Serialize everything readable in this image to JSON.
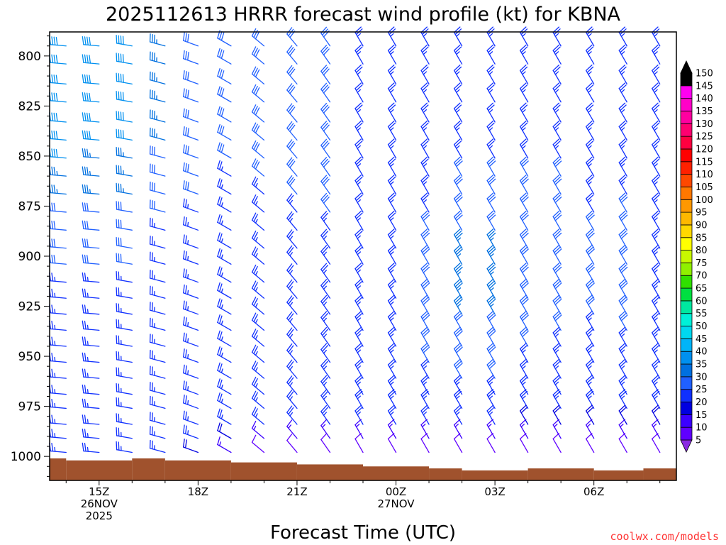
{
  "chart_data": {
    "type": "wind_barb_profile",
    "title": "2025112613 HRRR forecast wind profile (kt) for KBNA",
    "xlabel": "Forecast Time (UTC)",
    "ylabel": "",
    "credit": "coolwx.com/models",
    "y_ticks": [
      800,
      825,
      850,
      875,
      900,
      925,
      950,
      975,
      1000
    ],
    "ylim": [
      1012,
      788
    ],
    "xlim": [
      -1.5,
      17.5
    ],
    "x_ticks": [
      {
        "hour": 0,
        "lines": [
          "15Z",
          "26NOV",
          "2025"
        ]
      },
      {
        "hour": 3,
        "lines": [
          "18Z"
        ]
      },
      {
        "hour": 6,
        "lines": [
          "21Z"
        ]
      },
      {
        "hour": 9,
        "lines": [
          "00Z",
          "27NOV"
        ]
      },
      {
        "hour": 12,
        "lines": [
          "03Z"
        ]
      },
      {
        "hour": 15,
        "lines": [
          "06Z"
        ]
      }
    ],
    "pressure_levels": [
      795,
      804,
      814,
      823,
      833,
      842,
      851,
      860,
      869,
      878,
      887,
      896,
      904,
      913,
      921,
      929,
      937,
      945,
      953,
      961,
      969,
      976,
      984,
      991,
      998
    ],
    "surface_pressure": [
      {
        "x0": -1.5,
        "x1": -1.0,
        "p": 1001
      },
      {
        "x0": -1.0,
        "x1": 1.0,
        "p": 1002
      },
      {
        "x0": 1.0,
        "x1": 2.0,
        "p": 1001
      },
      {
        "x0": 2.0,
        "x1": 4.0,
        "p": 1002
      },
      {
        "x0": 4.0,
        "x1": 6.0,
        "p": 1003
      },
      {
        "x0": 6.0,
        "x1": 8.0,
        "p": 1004
      },
      {
        "x0": 8.0,
        "x1": 10.0,
        "p": 1005
      },
      {
        "x0": 10.0,
        "x1": 11.0,
        "p": 1006
      },
      {
        "x0": 11.0,
        "x1": 13.0,
        "p": 1007
      },
      {
        "x0": 13.0,
        "x1": 15.0,
        "p": 1006
      },
      {
        "x0": 15.0,
        "x1": 16.5,
        "p": 1007
      },
      {
        "x0": 16.5,
        "x1": 17.5,
        "p": 1006
      }
    ],
    "series": [
      {
        "hour": -1,
        "dir": [
          275,
          275,
          275,
          275,
          275,
          275,
          275,
          275,
          275,
          275,
          275,
          275,
          275,
          275,
          275,
          275,
          275,
          275,
          275,
          275,
          275,
          275,
          275,
          275,
          275
        ],
        "speed": [
          40,
          40,
          40,
          40,
          40,
          40,
          40,
          35,
          35,
          30,
          30,
          30,
          30,
          25,
          25,
          25,
          25,
          25,
          25,
          25,
          25,
          25,
          25,
          25,
          25
        ]
      },
      {
        "hour": 0,
        "dir": [
          275,
          275,
          275,
          275,
          275,
          275,
          275,
          275,
          275,
          275,
          275,
          275,
          275,
          275,
          275,
          275,
          275,
          275,
          275,
          275,
          275,
          275,
          275,
          275,
          275
        ],
        "speed": [
          40,
          40,
          40,
          40,
          40,
          40,
          35,
          35,
          35,
          30,
          30,
          30,
          30,
          25,
          25,
          25,
          25,
          25,
          25,
          25,
          25,
          25,
          25,
          25,
          25
        ]
      },
      {
        "hour": 1,
        "dir": [
          280,
          280,
          280,
          280,
          280,
          280,
          280,
          280,
          280,
          280,
          280,
          280,
          280,
          280,
          280,
          280,
          280,
          280,
          280,
          280,
          280,
          280,
          280,
          280,
          280
        ],
        "speed": [
          40,
          40,
          40,
          40,
          40,
          40,
          35,
          35,
          35,
          30,
          30,
          30,
          30,
          25,
          25,
          25,
          25,
          25,
          25,
          25,
          25,
          25,
          25,
          25,
          25
        ]
      },
      {
        "hour": 2,
        "dir": [
          285,
          285,
          285,
          285,
          285,
          285,
          285,
          285,
          285,
          285,
          285,
          285,
          285,
          285,
          285,
          285,
          285,
          285,
          285,
          285,
          285,
          285,
          285,
          285,
          285
        ],
        "speed": [
          35,
          35,
          35,
          35,
          35,
          35,
          30,
          30,
          30,
          30,
          25,
          25,
          25,
          25,
          25,
          25,
          25,
          25,
          25,
          25,
          25,
          25,
          25,
          25,
          25
        ]
      },
      {
        "hour": 3,
        "dir": [
          290,
          290,
          290,
          290,
          290,
          290,
          290,
          290,
          290,
          290,
          290,
          290,
          290,
          290,
          290,
          290,
          290,
          290,
          290,
          290,
          290,
          290,
          290,
          290,
          290
        ],
        "speed": [
          30,
          30,
          30,
          30,
          30,
          30,
          30,
          30,
          30,
          25,
          25,
          25,
          25,
          25,
          25,
          25,
          25,
          25,
          25,
          25,
          25,
          25,
          25,
          25,
          20
        ]
      },
      {
        "hour": 4,
        "dir": [
          300,
          300,
          300,
          300,
          300,
          300,
          300,
          300,
          300,
          300,
          300,
          300,
          300,
          300,
          300,
          300,
          300,
          300,
          300,
          300,
          300,
          300,
          300,
          300,
          300
        ],
        "speed": [
          30,
          30,
          30,
          30,
          30,
          30,
          30,
          25,
          25,
          25,
          25,
          25,
          25,
          25,
          25,
          25,
          25,
          25,
          25,
          25,
          25,
          25,
          25,
          20,
          15
        ]
      },
      {
        "hour": 5,
        "dir": [
          310,
          310,
          310,
          310,
          310,
          310,
          310,
          310,
          310,
          310,
          310,
          310,
          310,
          310,
          310,
          310,
          310,
          310,
          310,
          310,
          310,
          310,
          310,
          310,
          310
        ],
        "speed": [
          30,
          30,
          30,
          30,
          30,
          30,
          30,
          30,
          25,
          25,
          25,
          25,
          25,
          25,
          25,
          25,
          25,
          25,
          25,
          25,
          25,
          25,
          25,
          15,
          10
        ]
      },
      {
        "hour": 6,
        "dir": [
          320,
          320,
          320,
          320,
          320,
          320,
          320,
          320,
          320,
          320,
          320,
          320,
          320,
          320,
          320,
          320,
          320,
          320,
          320,
          320,
          320,
          320,
          320,
          320,
          320
        ],
        "speed": [
          30,
          30,
          30,
          30,
          30,
          30,
          30,
          30,
          30,
          25,
          25,
          25,
          25,
          25,
          25,
          25,
          25,
          25,
          25,
          25,
          25,
          25,
          25,
          15,
          10
        ]
      },
      {
        "hour": 7,
        "dir": [
          325,
          325,
          325,
          325,
          325,
          325,
          325,
          325,
          325,
          325,
          325,
          325,
          325,
          325,
          325,
          325,
          325,
          325,
          325,
          325,
          325,
          325,
          325,
          325,
          325
        ],
        "speed": [
          30,
          30,
          30,
          30,
          30,
          30,
          30,
          30,
          30,
          30,
          25,
          25,
          25,
          25,
          25,
          25,
          25,
          25,
          25,
          25,
          25,
          25,
          25,
          15,
          10
        ]
      },
      {
        "hour": 8,
        "dir": [
          330,
          330,
          330,
          330,
          330,
          330,
          330,
          330,
          330,
          330,
          330,
          330,
          330,
          330,
          330,
          330,
          330,
          330,
          330,
          330,
          330,
          330,
          330,
          330,
          330
        ],
        "speed": [
          25,
          25,
          25,
          25,
          25,
          25,
          25,
          25,
          25,
          25,
          25,
          25,
          25,
          25,
          25,
          25,
          25,
          25,
          25,
          25,
          25,
          25,
          25,
          15,
          10
        ]
      },
      {
        "hour": 9,
        "dir": [
          330,
          330,
          330,
          330,
          330,
          330,
          330,
          330,
          330,
          330,
          330,
          330,
          330,
          330,
          330,
          330,
          330,
          330,
          330,
          330,
          330,
          330,
          330,
          330,
          330
        ],
        "speed": [
          25,
          25,
          25,
          25,
          25,
          25,
          25,
          25,
          25,
          25,
          25,
          25,
          25,
          25,
          25,
          25,
          25,
          25,
          25,
          25,
          25,
          25,
          25,
          15,
          10
        ]
      },
      {
        "hour": 10,
        "dir": [
          330,
          330,
          330,
          330,
          330,
          330,
          330,
          330,
          330,
          330,
          330,
          330,
          330,
          330,
          330,
          330,
          330,
          330,
          330,
          330,
          330,
          330,
          330,
          330,
          330
        ],
        "speed": [
          25,
          25,
          25,
          25,
          25,
          25,
          25,
          25,
          25,
          25,
          30,
          30,
          30,
          30,
          30,
          30,
          30,
          30,
          30,
          25,
          25,
          25,
          25,
          15,
          10
        ]
      },
      {
        "hour": 11,
        "dir": [
          330,
          330,
          330,
          330,
          330,
          330,
          330,
          330,
          330,
          330,
          330,
          330,
          330,
          330,
          330,
          330,
          330,
          330,
          330,
          330,
          330,
          330,
          330,
          330,
          330
        ],
        "speed": [
          25,
          25,
          25,
          25,
          25,
          25,
          25,
          30,
          30,
          30,
          30,
          35,
          35,
          35,
          35,
          35,
          30,
          30,
          30,
          30,
          25,
          25,
          25,
          15,
          10
        ]
      },
      {
        "hour": 12,
        "dir": [
          330,
          330,
          330,
          330,
          330,
          330,
          330,
          330,
          330,
          330,
          330,
          330,
          330,
          330,
          330,
          330,
          330,
          330,
          330,
          330,
          330,
          330,
          330,
          330,
          330
        ],
        "speed": [
          25,
          25,
          25,
          25,
          25,
          25,
          25,
          30,
          30,
          30,
          30,
          35,
          35,
          35,
          35,
          35,
          30,
          30,
          30,
          30,
          25,
          25,
          25,
          15,
          10
        ]
      },
      {
        "hour": 13,
        "dir": [
          330,
          330,
          330,
          330,
          330,
          330,
          330,
          330,
          330,
          330,
          330,
          330,
          330,
          330,
          330,
          330,
          330,
          330,
          330,
          330,
          330,
          330,
          330,
          330,
          330
        ],
        "speed": [
          25,
          25,
          25,
          25,
          25,
          25,
          25,
          30,
          30,
          30,
          30,
          30,
          30,
          30,
          30,
          30,
          30,
          30,
          25,
          25,
          25,
          25,
          20,
          15,
          10
        ]
      },
      {
        "hour": 14,
        "dir": [
          330,
          330,
          330,
          330,
          330,
          330,
          330,
          330,
          330,
          330,
          330,
          330,
          330,
          330,
          330,
          330,
          330,
          330,
          330,
          330,
          330,
          330,
          330,
          330,
          330
        ],
        "speed": [
          25,
          25,
          25,
          25,
          25,
          25,
          25,
          30,
          30,
          30,
          30,
          30,
          30,
          30,
          30,
          30,
          30,
          25,
          25,
          25,
          25,
          25,
          20,
          15,
          10
        ]
      },
      {
        "hour": 15,
        "dir": [
          330,
          330,
          330,
          330,
          330,
          330,
          330,
          330,
          330,
          330,
          330,
          330,
          330,
          330,
          330,
          330,
          330,
          330,
          330,
          330,
          330,
          330,
          330,
          330,
          330
        ],
        "speed": [
          25,
          25,
          25,
          25,
          25,
          25,
          25,
          25,
          25,
          25,
          30,
          30,
          30,
          30,
          30,
          30,
          25,
          25,
          25,
          25,
          25,
          25,
          20,
          15,
          10
        ]
      },
      {
        "hour": 16,
        "dir": [
          330,
          330,
          330,
          330,
          330,
          330,
          330,
          330,
          330,
          330,
          330,
          330,
          330,
          330,
          330,
          330,
          330,
          330,
          330,
          330,
          330,
          330,
          330,
          330,
          330
        ],
        "speed": [
          25,
          25,
          25,
          25,
          25,
          25,
          25,
          25,
          25,
          30,
          30,
          30,
          30,
          30,
          30,
          30,
          30,
          25,
          25,
          25,
          25,
          25,
          20,
          15,
          10
        ]
      },
      {
        "hour": 17,
        "dir": [
          330,
          330,
          330,
          330,
          330,
          330,
          330,
          330,
          330,
          330,
          330,
          330,
          330,
          330,
          330,
          330,
          330,
          330,
          330,
          330,
          330,
          330,
          330,
          330,
          330
        ],
        "speed": [
          25,
          25,
          25,
          25,
          25,
          25,
          25,
          25,
          25,
          25,
          25,
          25,
          25,
          25,
          25,
          25,
          25,
          25,
          25,
          25,
          25,
          25,
          20,
          15,
          10
        ]
      }
    ],
    "colorbar": {
      "levels": [
        5,
        10,
        15,
        20,
        25,
        30,
        35,
        40,
        45,
        50,
        55,
        60,
        65,
        70,
        75,
        80,
        85,
        90,
        95,
        100,
        105,
        110,
        115,
        120,
        125,
        130,
        135,
        140,
        145,
        150
      ],
      "colors": [
        "#8a2be2",
        "#6000ff",
        "#3c00ff",
        "#0000e0",
        "#1030ff",
        "#2060ff",
        "#0070e0",
        "#0090f0",
        "#00b4f8",
        "#00d8f0",
        "#00f0d8",
        "#00e8a0",
        "#00e040",
        "#30e000",
        "#90f000",
        "#c8f800",
        "#ffff00",
        "#ffd800",
        "#ffb800",
        "#ff9800",
        "#ff7800",
        "#ff4800",
        "#ff2000",
        "#ff0000",
        "#ff0040",
        "#ff0070",
        "#ff00a0",
        "#ff00c8",
        "#ff00f0",
        "#000000"
      ]
    },
    "surface_color": "#a0522d",
    "grid": false,
    "legend": "right colorbar"
  }
}
